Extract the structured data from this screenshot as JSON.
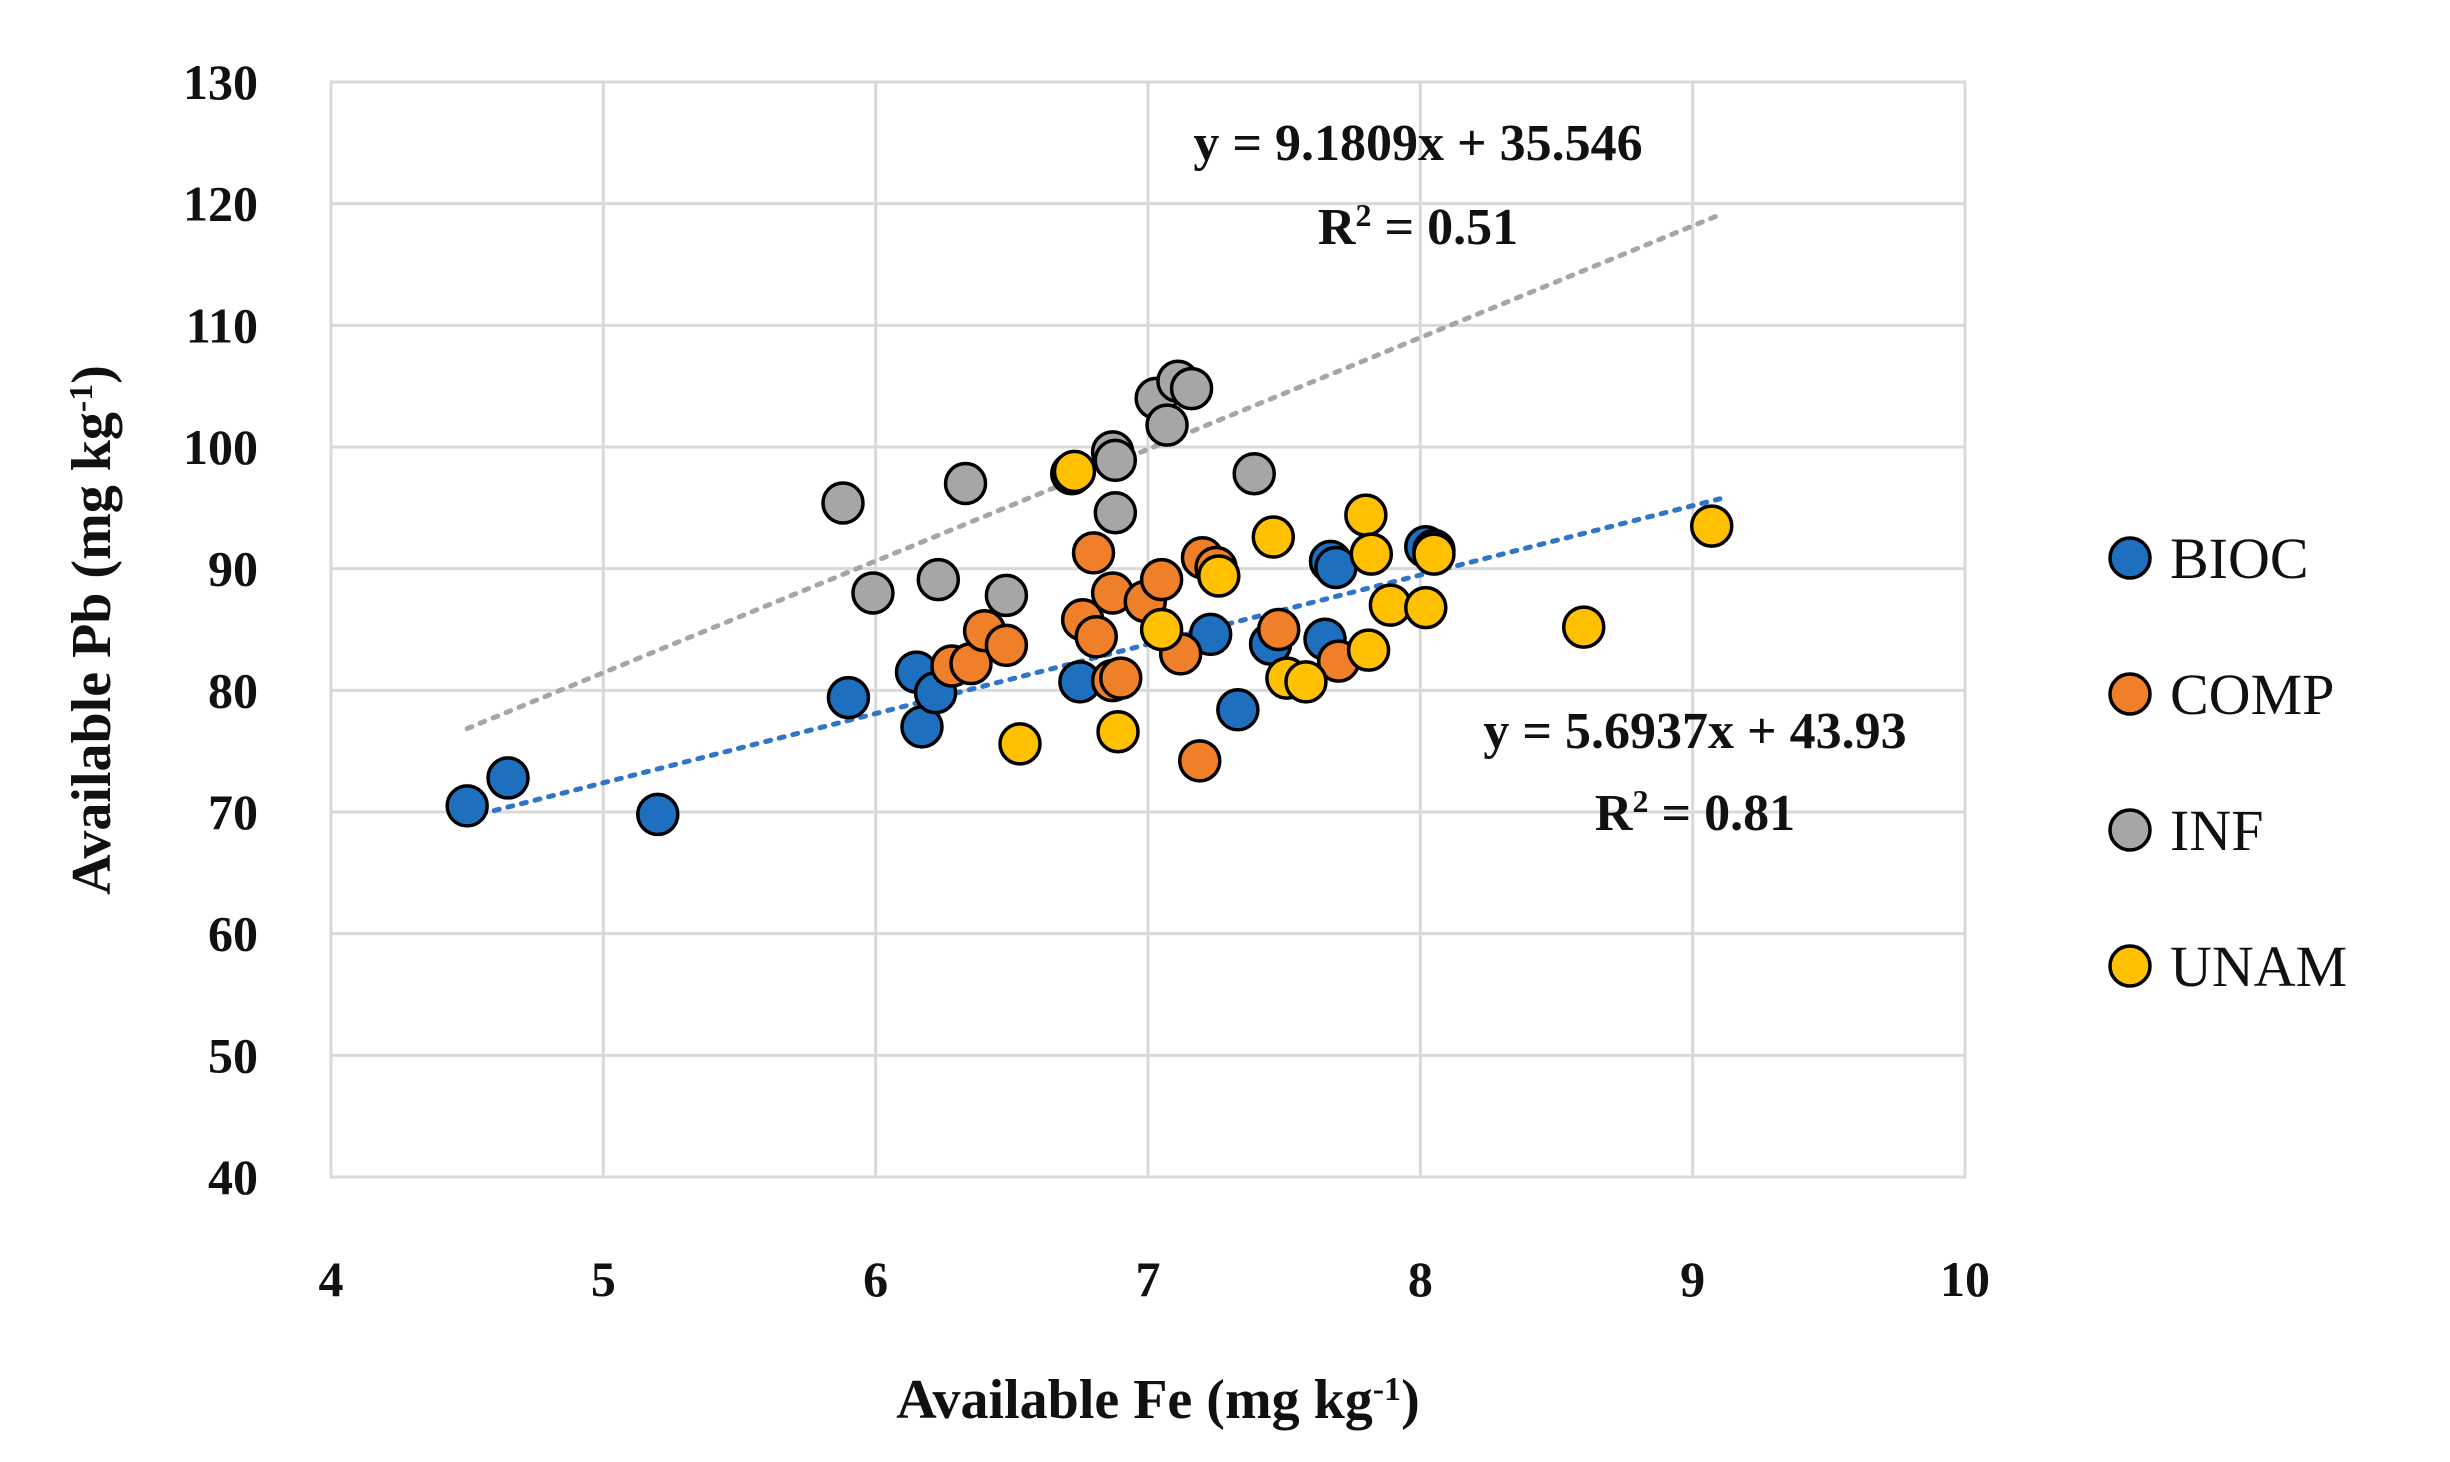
{
  "chart_data": {
    "type": "scatter",
    "title": "",
    "xlabel": "Available Fe (mg kg",
    "xlabel_sup": "-1",
    "xlabel_tail": ")",
    "ylabel": "Available Pb (mg kg",
    "ylabel_sup": "-1",
    "ylabel_tail": ")",
    "xlim": [
      4,
      10
    ],
    "ylim": [
      40,
      130
    ],
    "xticks": [
      4,
      5,
      6,
      7,
      8,
      9,
      10
    ],
    "yticks": [
      40,
      50,
      60,
      70,
      80,
      90,
      100,
      110,
      120,
      130
    ],
    "grid": true,
    "legend_position": "right",
    "series": [
      {
        "name": "BIOC",
        "color": "#1f6fbf",
        "points": [
          [
            4.5,
            70.5
          ],
          [
            4.65,
            72.8
          ],
          [
            5.2,
            69.8
          ],
          [
            5.9,
            79.4
          ],
          [
            6.15,
            81.5
          ],
          [
            6.17,
            77
          ],
          [
            6.22,
            79.8
          ],
          [
            6.75,
            80.7
          ],
          [
            7.23,
            84.6
          ],
          [
            7.33,
            78.4
          ],
          [
            7.45,
            83.8
          ],
          [
            7.65,
            84.2
          ],
          [
            7.67,
            90.6
          ],
          [
            7.69,
            90.1
          ],
          [
            8.02,
            91.8
          ],
          [
            8.05,
            91.5
          ]
        ]
      },
      {
        "name": "COMP",
        "color": "#f07f2a",
        "points": [
          [
            6.28,
            82
          ],
          [
            6.35,
            82.2
          ],
          [
            6.4,
            84.9
          ],
          [
            6.48,
            83.7
          ],
          [
            6.76,
            85.8
          ],
          [
            6.8,
            91.3
          ],
          [
            6.81,
            84.4
          ],
          [
            6.87,
            88
          ],
          [
            6.87,
            80.8
          ],
          [
            6.9,
            81
          ],
          [
            6.99,
            87.3
          ],
          [
            7.05,
            89.1
          ],
          [
            7.12,
            83
          ],
          [
            7.19,
            74.2
          ],
          [
            7.2,
            90.9
          ],
          [
            7.25,
            90.1
          ],
          [
            7.48,
            85
          ],
          [
            7.7,
            82.4
          ]
        ]
      },
      {
        "name": "INF",
        "color": "#a6a6a6",
        "points": [
          [
            5.88,
            95.4
          ],
          [
            5.99,
            88
          ],
          [
            6.23,
            89.1
          ],
          [
            6.33,
            97
          ],
          [
            6.48,
            87.8
          ],
          [
            6.72,
            97.8
          ],
          [
            6.87,
            99.6
          ],
          [
            6.88,
            98.9
          ],
          [
            6.88,
            94.6
          ],
          [
            7.03,
            104
          ],
          [
            7.07,
            101.8
          ],
          [
            7.11,
            105.4
          ],
          [
            7.16,
            104.8
          ],
          [
            7.39,
            97.8
          ]
        ]
      },
      {
        "name": "UNAM",
        "color": "#ffc000",
        "points": [
          [
            6.53,
            75.6
          ],
          [
            6.73,
            98
          ],
          [
            6.89,
            76.6
          ],
          [
            7.05,
            85
          ],
          [
            7.26,
            89.4
          ],
          [
            7.46,
            92.6
          ],
          [
            7.51,
            81
          ],
          [
            7.58,
            80.7
          ],
          [
            7.8,
            94.4
          ],
          [
            7.81,
            83.3
          ],
          [
            7.82,
            91.2
          ],
          [
            7.89,
            87
          ],
          [
            8.02,
            86.8
          ],
          [
            8.05,
            91.2
          ],
          [
            8.6,
            85.2
          ],
          [
            9.07,
            93.5
          ]
        ]
      }
    ],
    "trendlines": [
      {
        "series": "INF",
        "slope": 9.1809,
        "intercept": 35.546,
        "x_range": [
          4.5,
          9.1
        ],
        "color": "#a6a6a6",
        "equation": "y = 9.1809x + 35.546",
        "r2_prefix": "R",
        "r2_sup": "2",
        "r2_value": " = 0.51"
      },
      {
        "series": "BIOC",
        "slope": 5.6937,
        "intercept": 43.93,
        "x_range": [
          4.5,
          9.1
        ],
        "color": "#2f75c8",
        "equation": "y = 5.6937x + 43.93",
        "r2_prefix": "R",
        "r2_sup": "2",
        "r2_value": " = 0.81"
      }
    ]
  }
}
